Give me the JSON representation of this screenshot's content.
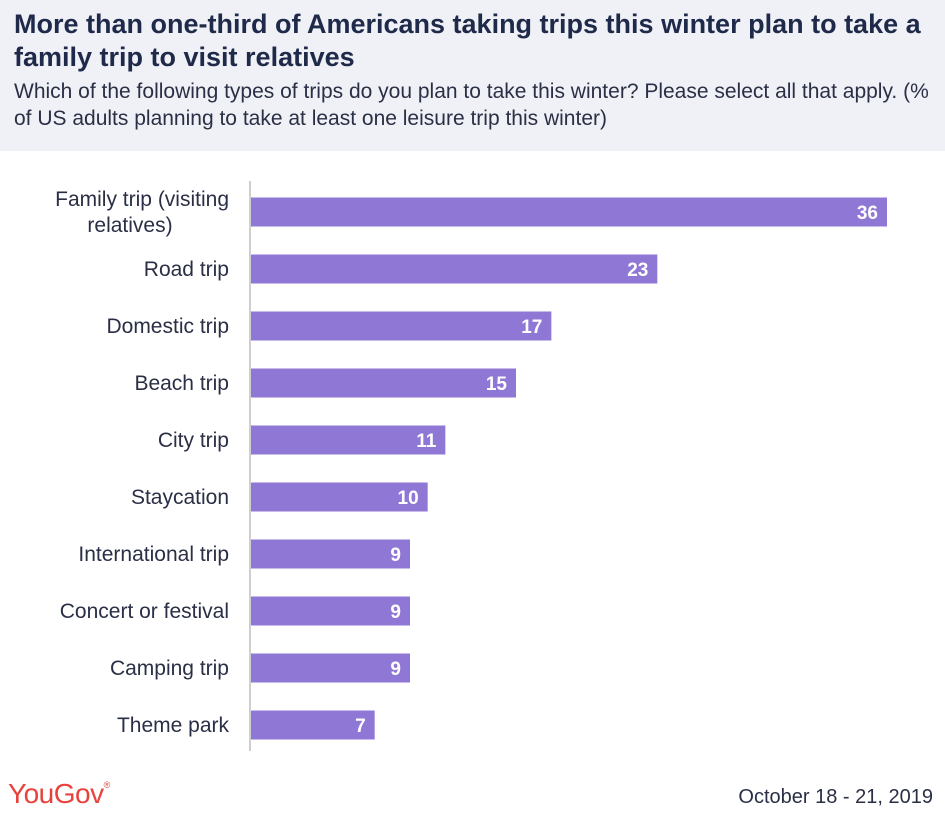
{
  "header": {
    "title": "More than one-third of Americans taking trips this winter plan to take a family trip to visit relatives",
    "subtitle": "Which of the following types of trips do you plan to take this winter? Please select all that apply. (% of US adults planning to take at least one leisure trip this winter)"
  },
  "chart_data": {
    "type": "bar",
    "orientation": "horizontal",
    "title": "More than one-third of Americans taking trips this winter plan to take a family trip to visit relatives",
    "xlabel": "",
    "ylabel": "",
    "xlim": [
      0,
      36
    ],
    "grid": false,
    "categories": [
      [
        "Family trip (visiting",
        "relatives)"
      ],
      [
        "Road trip"
      ],
      [
        "Domestic trip"
      ],
      [
        "Beach trip"
      ],
      [
        "City trip"
      ],
      [
        "Staycation"
      ],
      [
        "International trip"
      ],
      [
        "Concert or festival"
      ],
      [
        "Camping trip"
      ],
      [
        "Theme park"
      ]
    ],
    "values": [
      36,
      23,
      17,
      15,
      11,
      10,
      9,
      9,
      9,
      7
    ],
    "bar_color": "#8f77d6",
    "axis_color": "#cfcfcf",
    "label_color": "#2a2f45",
    "value_label_color": "#ffffff"
  },
  "footer": {
    "logo": "YouGov",
    "logo_mark": "®",
    "date": "October 18 - 21, 2019"
  }
}
